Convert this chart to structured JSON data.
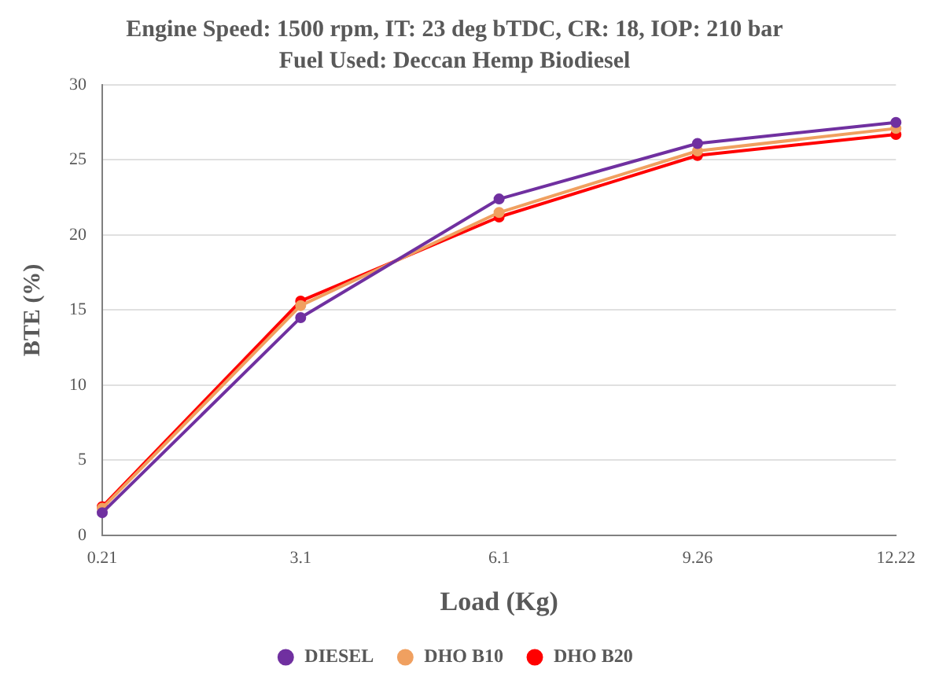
{
  "chart_data": {
    "type": "line",
    "title": "Engine Speed: 1500 rpm, IT: 23 deg bTDC, CR: 18, IOP: 210 bar",
    "subtitle": "Fuel Used: Deccan Hemp Biodiesel",
    "xlabel": "Load (Kg)",
    "ylabel": "BTE (%)",
    "categories": [
      "0.21",
      "3.1",
      "6.1",
      "9.26",
      "12.22"
    ],
    "series": [
      {
        "name": "DIESEL",
        "color": "#7030a0",
        "values": [
          1.5,
          14.5,
          22.4,
          26.1,
          27.5
        ]
      },
      {
        "name": "DHO B10",
        "color": "#f0a060",
        "values": [
          1.8,
          15.3,
          21.5,
          25.6,
          27.1
        ]
      },
      {
        "name": "DHO B20",
        "color": "#ff0000",
        "values": [
          1.9,
          15.6,
          21.2,
          25.3,
          26.7
        ]
      }
    ],
    "ylim": [
      0,
      30
    ],
    "yticks": [
      0,
      5,
      10,
      15,
      20,
      25,
      30
    ],
    "grid": "y",
    "legend": "bottom",
    "marker": "circle",
    "line_style": "solid"
  }
}
